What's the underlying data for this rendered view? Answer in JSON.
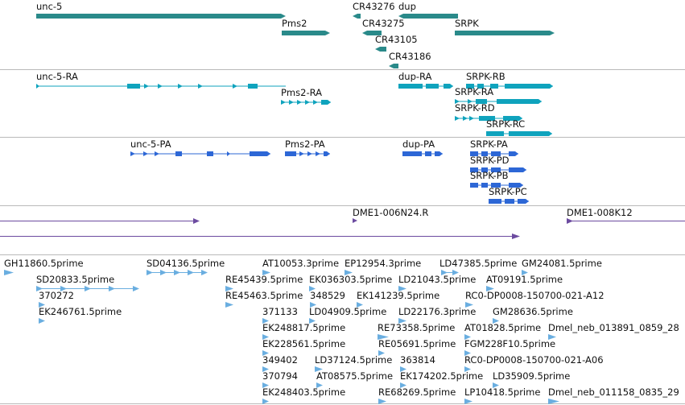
{
  "colors": {
    "gene": "#2a8a8a",
    "transcript": "#0fa3bd",
    "protein": "#2d67d6",
    "clone": "#6c4ba0",
    "est": "#6aaee0",
    "separator": "#b9b9b9"
  },
  "tracks": {
    "genes": [
      {
        "label": "unc-5",
        "strand": "+"
      },
      {
        "label": "CR43276",
        "strand": "-"
      },
      {
        "label": "dup",
        "strand": "-"
      },
      {
        "label": "Pms2",
        "strand": "+"
      },
      {
        "label": "CR43275",
        "strand": "-"
      },
      {
        "label": "SRPK",
        "strand": "+"
      },
      {
        "label": "CR43105",
        "strand": "-"
      },
      {
        "label": "CR43186",
        "strand": "-"
      }
    ],
    "transcripts": [
      {
        "label": "unc-5-RA"
      },
      {
        "label": "dup-RA"
      },
      {
        "label": "SRPK-RB"
      },
      {
        "label": "Pms2-RA"
      },
      {
        "label": "SRPK-RA"
      },
      {
        "label": "SRPK-RD"
      },
      {
        "label": "SRPK-RC"
      }
    ],
    "proteins": [
      {
        "label": "unc-5-PA"
      },
      {
        "label": "Pms2-PA"
      },
      {
        "label": "dup-PA"
      },
      {
        "label": "SRPK-PA"
      },
      {
        "label": "SRPK-PD"
      },
      {
        "label": "SRPK-PB"
      },
      {
        "label": "SRPK-PC"
      }
    ],
    "clones": [
      {
        "label": "DME1-006N24.R"
      },
      {
        "label": "DME1-008K12"
      }
    ],
    "ests": [
      {
        "label": "GH11860.5prime"
      },
      {
        "label": "SD04136.5prime"
      },
      {
        "label": "AT10053.3prime"
      },
      {
        "label": "EP12954.3prime"
      },
      {
        "label": "LD47385.5prime"
      },
      {
        "label": "GM24081.5prime"
      },
      {
        "label": "SD20833.5prime"
      },
      {
        "label": "RE45439.5prime"
      },
      {
        "label": "EK036303.5prime"
      },
      {
        "label": "LD21043.5prime"
      },
      {
        "label": "AT09191.5prime"
      },
      {
        "label": "370272"
      },
      {
        "label": "RE45463.5prime"
      },
      {
        "label": "348529"
      },
      {
        "label": "EK141239.5prime"
      },
      {
        "label": "RC0-DP0008-150700-021-A12"
      },
      {
        "label": "EK246761.5prime"
      },
      {
        "label": "371133"
      },
      {
        "label": "LD04909.5prime"
      },
      {
        "label": "LD22176.3prime"
      },
      {
        "label": "GM28636.5prime"
      },
      {
        "label": "EK248817.5prime"
      },
      {
        "label": "RE73358.5prime"
      },
      {
        "label": "AT01828.5prime"
      },
      {
        "label": "Dmel_neb_013891_0859_28"
      },
      {
        "label": "EK228561.5prime"
      },
      {
        "label": "RE05691.5prime"
      },
      {
        "label": "FGM228F10.5prime"
      },
      {
        "label": "349402"
      },
      {
        "label": "LD37124.5prime"
      },
      {
        "label": "363814"
      },
      {
        "label": "RC0-DP0008-150700-021-A06"
      },
      {
        "label": "370794"
      },
      {
        "label": "AT08575.5prime"
      },
      {
        "label": "EK174202.5prime"
      },
      {
        "label": "LD35909.5prime"
      },
      {
        "label": "EK248403.5prime"
      },
      {
        "label": "RE68269.5prime"
      },
      {
        "label": "LP10418.5prime"
      },
      {
        "label": "Dmel_neb_011158_0835_29"
      }
    ]
  }
}
